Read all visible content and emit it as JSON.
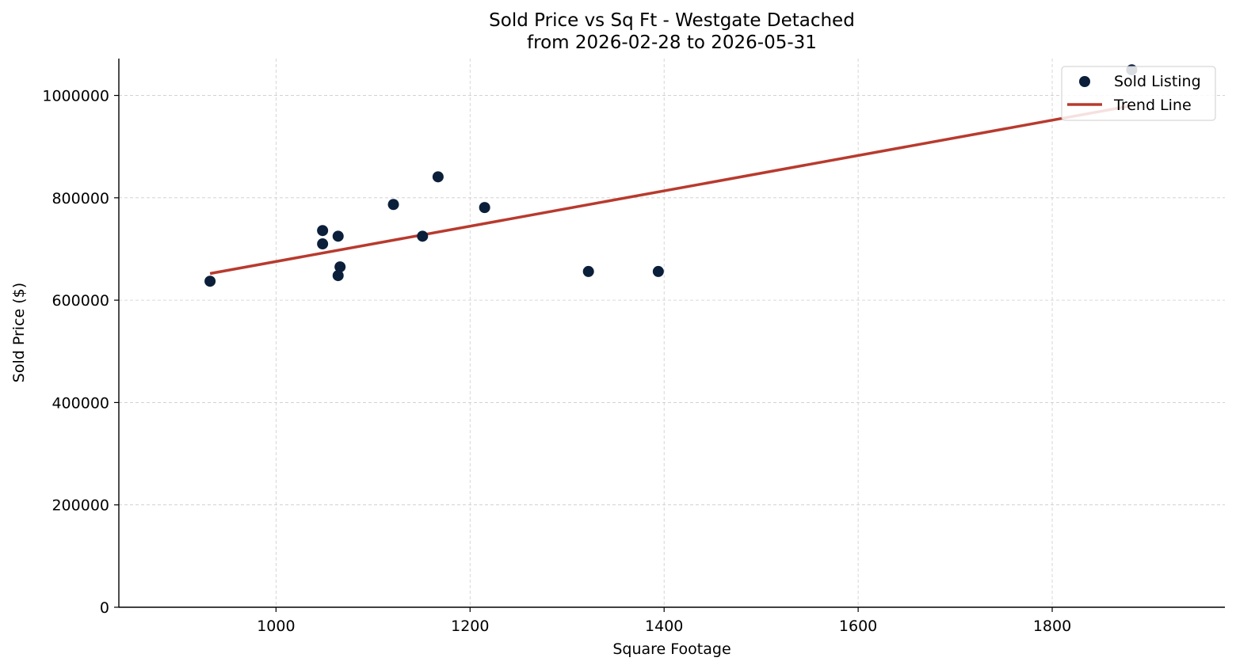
{
  "chart_data": {
    "type": "scatter",
    "title": "Sold Price vs Sq Ft - Westgate Detached",
    "subtitle": "from 2026-02-28 to 2026-05-31",
    "xlabel": "Square Footage",
    "ylabel": "Sold Price ($)",
    "xlim": [
      838,
      1978
    ],
    "ylim": [
      0,
      1072000
    ],
    "x_ticks": [
      1000,
      1200,
      1400,
      1600,
      1800
    ],
    "y_ticks": [
      0,
      200000,
      400000,
      600000,
      800000,
      1000000
    ],
    "x_tick_labels": [
      "1000",
      "1200",
      "1400",
      "1600",
      "1800"
    ],
    "y_tick_labels": [
      "0",
      "200000",
      "400000",
      "600000",
      "800000",
      "1000000"
    ],
    "grid": true,
    "legend_position": "top-right",
    "series": [
      {
        "name": "Sold Listing",
        "kind": "scatter",
        "color": "#0b1f3a",
        "points": [
          {
            "x": 932,
            "y": 637000
          },
          {
            "x": 1048,
            "y": 736000
          },
          {
            "x": 1048,
            "y": 710000
          },
          {
            "x": 1064,
            "y": 725000
          },
          {
            "x": 1064,
            "y": 648000
          },
          {
            "x": 1066,
            "y": 665000
          },
          {
            "x": 1121,
            "y": 787000
          },
          {
            "x": 1151,
            "y": 725000
          },
          {
            "x": 1167,
            "y": 841000
          },
          {
            "x": 1215,
            "y": 781000
          },
          {
            "x": 1322,
            "y": 656000
          },
          {
            "x": 1394,
            "y": 656000
          },
          {
            "x": 1882,
            "y": 1050000
          }
        ]
      },
      {
        "name": "Trend Line",
        "kind": "line",
        "color": "#b83a2e",
        "points": [
          {
            "x": 932,
            "y": 652000
          },
          {
            "x": 1882,
            "y": 980000
          }
        ]
      }
    ]
  }
}
